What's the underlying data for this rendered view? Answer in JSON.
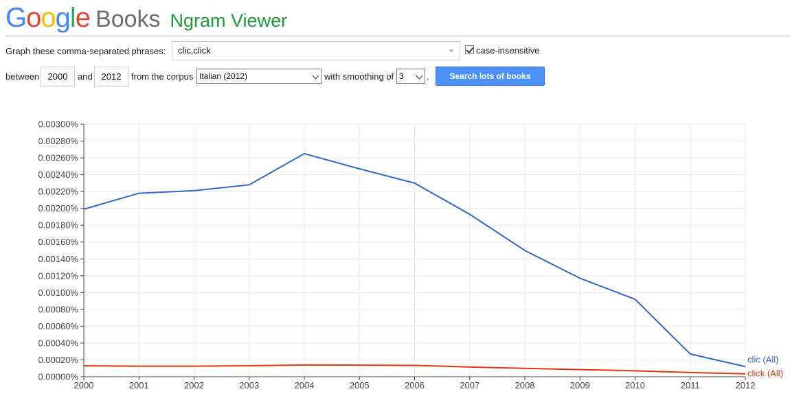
{
  "header": {
    "logo_google": "Google",
    "logo_books": "Books",
    "title": "Ngram Viewer",
    "google_colors": [
      "#4285f4",
      "#ea4335",
      "#fbbc05",
      "#4285f4",
      "#34a853",
      "#ea4335"
    ]
  },
  "form": {
    "phrases_label": "Graph these comma-separated phrases:",
    "phrases_value": "clic,click",
    "case_insensitive_label": "case-insensitive",
    "case_insensitive_checked": true,
    "between_label": "between",
    "start_year": "2000",
    "and_label": "and",
    "end_year": "2012",
    "corpus_label": "from the corpus",
    "corpus_value": "Italian (2012)",
    "smoothing_label": "with smoothing of",
    "smoothing_value": "3",
    "period": ".",
    "search_button": "Search lots of books",
    "button_color": "#4d90fe"
  },
  "chart_data": {
    "type": "line",
    "x": [
      2000,
      2001,
      2002,
      2003,
      2004,
      2005,
      2006,
      2007,
      2008,
      2009,
      2010,
      2011,
      2012
    ],
    "xlim": [
      2000,
      2012
    ],
    "ylim": [
      0,
      0.003
    ],
    "yticks": [
      "0.00000%",
      "0.00020%",
      "0.00040%",
      "0.00060%",
      "0.00080%",
      "0.00100%",
      "0.00120%",
      "0.00140%",
      "0.00160%",
      "0.00180%",
      "0.00200%",
      "0.00220%",
      "0.00240%",
      "0.00260%",
      "0.00280%",
      "0.00300%"
    ],
    "grid": true,
    "legend_placement": "right end of lines",
    "series": [
      {
        "name": "clic (All)",
        "color": "#3366cc",
        "values": [
          0.00199,
          0.00218,
          0.00221,
          0.00228,
          0.00265,
          0.00247,
          0.0023,
          0.00193,
          0.0015,
          0.00117,
          0.00092,
          0.00027,
          0.00012
        ]
      },
      {
        "name": "click (All)",
        "color": "#dc3912",
        "values": [
          0.00013,
          0.000125,
          0.000125,
          0.00013,
          0.00014,
          0.000138,
          0.000135,
          0.000115,
          0.0001,
          8.5e-05,
          7e-05,
          5e-05,
          3.5e-05
        ]
      }
    ]
  }
}
